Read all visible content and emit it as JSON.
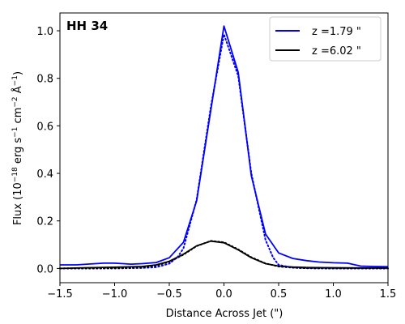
{
  "chart_data": {
    "type": "line",
    "title": "HH 34",
    "xlabel": "Distance Across Jet (\")",
    "ylabel_parts": {
      "a": "Flux (10",
      "b": "−18",
      "c": " erg s",
      "d": "−1",
      "e": " cm",
      "f": "−2",
      "g": " Å",
      "h": "−1",
      "i": ")"
    },
    "xlim": [
      -1.5,
      1.5
    ],
    "ylim": [
      -0.06,
      1.075
    ],
    "xticks": [
      -1.5,
      -1.0,
      -0.5,
      0.0,
      0.5,
      1.0,
      1.5
    ],
    "xtick_labels": [
      "−1.5",
      "−1.0",
      "−0.5",
      "0.0",
      "0.5",
      "1.0",
      "1.5"
    ],
    "yticks": [
      0.0,
      0.2,
      0.4,
      0.6,
      0.8,
      1.0
    ],
    "ytick_labels": [
      "0.0",
      "0.2",
      "0.4",
      "0.6",
      "0.8",
      "1.0"
    ],
    "grid": false,
    "legend_position": "top-right",
    "series": [
      {
        "name": "z =1.79 \"",
        "color": "#0000ff",
        "style": "solid",
        "legend": true,
        "x": [
          -1.5,
          -1.35,
          -1.25,
          -1.1,
          -1.0,
          -0.85,
          -0.75,
          -0.62,
          -0.5,
          -0.37,
          -0.25,
          0.0,
          0.13,
          0.25,
          0.38,
          0.5,
          0.63,
          0.75,
          0.87,
          1.0,
          1.13,
          1.25,
          1.37,
          1.5
        ],
        "y": [
          0.015,
          0.015,
          0.018,
          0.022,
          0.022,
          0.018,
          0.02,
          0.025,
          0.045,
          0.11,
          0.285,
          1.02,
          0.825,
          0.39,
          0.145,
          0.065,
          0.042,
          0.033,
          0.027,
          0.024,
          0.022,
          0.01,
          0.008,
          0.007
        ]
      },
      {
        "name": "z =6.02 \"",
        "color": "#000000",
        "style": "solid",
        "legend": true,
        "x": [
          -1.5,
          -1.25,
          -1.0,
          -0.75,
          -0.62,
          -0.5,
          -0.37,
          -0.25,
          -0.12,
          0.0,
          0.13,
          0.25,
          0.38,
          0.5,
          0.63,
          0.75,
          1.0,
          1.25,
          1.5
        ],
        "y": [
          0.0,
          0.003,
          0.005,
          0.008,
          0.015,
          0.03,
          0.06,
          0.095,
          0.115,
          0.108,
          0.078,
          0.045,
          0.02,
          0.01,
          0.006,
          0.004,
          0.003,
          0.002,
          0.002
        ]
      },
      {
        "color": "#0000ff",
        "style": "dotted",
        "legend": false,
        "x": [
          -1.5,
          -1.25,
          -1.0,
          -0.75,
          -0.62,
          -0.5,
          -0.42,
          -0.37,
          -0.25,
          -0.12,
          0.0,
          0.13,
          0.25,
          0.38,
          0.45,
          0.5,
          0.62,
          0.75,
          1.0,
          1.25,
          1.5
        ],
        "y": [
          0.0,
          0.0,
          0.0,
          0.002,
          0.005,
          0.02,
          0.05,
          0.085,
          0.29,
          0.68,
          0.985,
          0.81,
          0.4,
          0.12,
          0.045,
          0.015,
          0.004,
          0.001,
          0.0,
          0.0,
          0.0
        ]
      },
      {
        "color": "#000000",
        "style": "dotted",
        "legend": false,
        "x": [
          -1.5,
          -1.25,
          -1.0,
          -0.75,
          -0.62,
          -0.5,
          -0.37,
          -0.25,
          -0.12,
          0.0,
          0.13,
          0.25,
          0.38,
          0.5,
          0.63,
          0.75,
          1.0,
          1.25,
          1.5
        ],
        "y": [
          0.0,
          0.0,
          0.001,
          0.004,
          0.012,
          0.028,
          0.058,
          0.094,
          0.116,
          0.11,
          0.08,
          0.047,
          0.021,
          0.008,
          0.003,
          0.001,
          0.0,
          0.0,
          0.0
        ]
      }
    ]
  }
}
